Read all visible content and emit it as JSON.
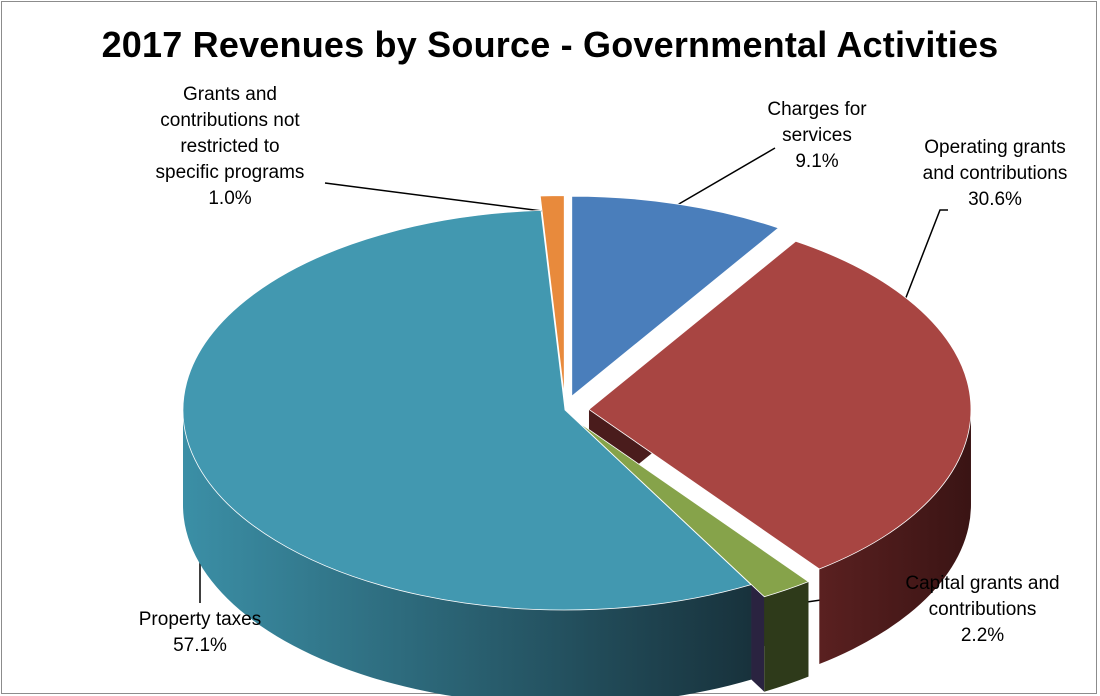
{
  "chart_data": {
    "type": "pie",
    "title": "2017 Revenues by Source - Governmental Activities",
    "slices": [
      {
        "label": [
          "Charges for",
          "services"
        ],
        "percent": "9.1%",
        "value": 9.1,
        "color": "#4a7ebb",
        "dark": "#2c4a70"
      },
      {
        "label": [
          "Operating grants",
          "and contributions"
        ],
        "percent": "30.6%",
        "value": 30.6,
        "color": "#a84542",
        "dark": "#4a1c1c"
      },
      {
        "label": [
          "Capital grants and",
          "contributions"
        ],
        "percent": "2.2%",
        "value": 2.2,
        "color": "#86a34a",
        "dark": "#2e3a1a"
      },
      {
        "label": [
          "Property taxes"
        ],
        "percent": "57.1%",
        "value": 57.1,
        "color": "#4298b0",
        "dark": "#1e4452"
      },
      {
        "label": [
          "Grants and",
          "contributions not",
          "restricted to",
          "specific programs"
        ],
        "percent": "1.0%",
        "value": 1.0,
        "color": "#e88a3c",
        "dark": "#8a4a18"
      }
    ]
  }
}
